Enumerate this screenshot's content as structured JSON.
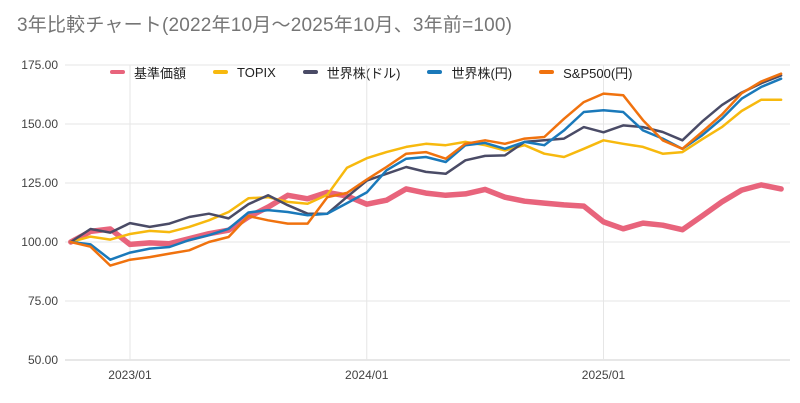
{
  "title": "3年比較チャート(2022年10月〜2025年10月、3年前=100)",
  "chart_data": {
    "type": "line",
    "title": "3年比較チャート(2022年10月〜2025年10月、3年前=100)",
    "legend_position": "top",
    "grid": true,
    "x_axis": {
      "start_month": "2022/10",
      "end_month": "2025/10",
      "tick_labels": [
        "2023/01",
        "2024/01",
        "2025/01"
      ],
      "tick_month_index": [
        3,
        15,
        27
      ]
    },
    "y_axis": {
      "ylim": [
        50,
        175
      ],
      "ticks": [
        50,
        75,
        100,
        125,
        150,
        175
      ],
      "tick_labels": [
        "50.00",
        "75.00",
        "100.00",
        "125.00",
        "150.00",
        "175.00"
      ]
    },
    "series": [
      {
        "name": "基準価額",
        "color": "#e8647c",
        "line_width": 5.5,
        "values": [
          100,
          104.5,
          105.5,
          99.0,
          99.6,
          99.3,
          101.4,
          103.5,
          105.0,
          110.6,
          114.8,
          119.8,
          118.3,
          121.0,
          119.5,
          116.0,
          117.7,
          122.5,
          120.7,
          119.8,
          120.4,
          122.3,
          119.0,
          117.3,
          116.5,
          115.7,
          115.2,
          108.5,
          105.6,
          108.0,
          107.1,
          105.2,
          111.0,
          117.0,
          122.0,
          124.2,
          122.5
        ]
      },
      {
        "name": "TOPIX",
        "color": "#f7b90e",
        "line_width": 2.5,
        "values": [
          100,
          102.3,
          101.0,
          103.4,
          104.7,
          104.2,
          106.4,
          109.2,
          112.7,
          118.5,
          119.0,
          117.0,
          116.2,
          120.0,
          131.5,
          135.5,
          138.1,
          140.3,
          141.6,
          141.0,
          142.4,
          141.0,
          138.8,
          141.0,
          137.4,
          136.0,
          139.5,
          143.1,
          141.6,
          140.3,
          137.4,
          138.1,
          143.5,
          148.7,
          155.5,
          160.3,
          160.3
        ]
      },
      {
        "name": "世界株(ドル)",
        "color": "#4a4b66",
        "line_width": 2.5,
        "values": [
          100,
          105.5,
          104.0,
          108.0,
          106.4,
          107.8,
          110.6,
          112.0,
          110.0,
          116.0,
          119.8,
          115.6,
          112.0,
          112.0,
          119.1,
          126.0,
          128.9,
          131.8,
          129.7,
          128.9,
          134.6,
          136.5,
          136.7,
          142.4,
          143.1,
          143.8,
          148.7,
          146.5,
          149.4,
          148.7,
          146.6,
          143.1,
          151.0,
          158.0,
          163.3,
          167.3,
          170.6
        ]
      },
      {
        "name": "世界株(円)",
        "color": "#1a79ba",
        "line_width": 2.5,
        "values": [
          100,
          99.0,
          92.5,
          95.5,
          97.2,
          97.9,
          100.8,
          102.9,
          105.6,
          112.5,
          113.5,
          112.7,
          111.3,
          112.0,
          116.5,
          121.0,
          130.4,
          135.3,
          136.0,
          133.9,
          141.0,
          142.0,
          139.5,
          142.4,
          141.0,
          147.3,
          155.1,
          155.8,
          155.1,
          147.3,
          143.8,
          139.5,
          145.2,
          152.3,
          160.7,
          165.7,
          169.2
        ]
      },
      {
        "name": "S&P500(円)",
        "color": "#f0720e",
        "line_width": 2.5,
        "values": [
          100,
          98.0,
          90.0,
          92.5,
          93.6,
          95.1,
          96.5,
          100.0,
          102.1,
          111.0,
          109.2,
          107.8,
          107.8,
          119.0,
          120.8,
          126.5,
          131.8,
          137.4,
          138.1,
          135.3,
          141.6,
          143.1,
          141.6,
          143.8,
          144.5,
          152.2,
          159.3,
          162.9,
          162.2,
          151.6,
          143.1,
          139.5,
          146.6,
          154.0,
          163.0,
          168.0,
          171.3
        ]
      }
    ]
  }
}
